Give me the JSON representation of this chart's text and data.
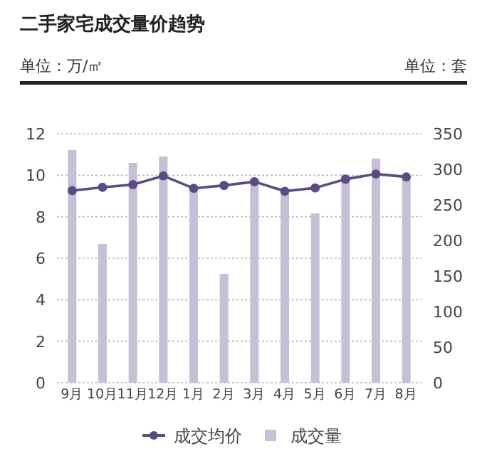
{
  "chart_data": {
    "type": "bar",
    "title": "二手家宅成交量价趋势",
    "ylabel": "单位：万/㎡",
    "y2label": "单位：套",
    "categories": [
      "9月",
      "10月",
      "11月",
      "12月",
      "1月",
      "2月",
      "3月",
      "4月",
      "5月",
      "6月",
      "7月",
      "8月"
    ],
    "series": [
      {
        "name": "成交均价",
        "type": "line",
        "color": "#5b4a86",
        "marker": "circle",
        "values": [
          9.26,
          9.42,
          9.55,
          9.97,
          9.37,
          9.51,
          9.69,
          9.23,
          9.39,
          9.81,
          10.06,
          9.92
        ]
      },
      {
        "name": "成交量",
        "axis": "y2",
        "color": "#c5c0d6",
        "values": [
          327,
          195,
          309,
          318,
          275,
          153,
          285,
          271,
          238,
          293,
          315,
          291
        ]
      }
    ],
    "ylim": [
      0,
      12
    ],
    "yticks": [
      0,
      2,
      4,
      6,
      8,
      10,
      12
    ],
    "y2lim": [
      0,
      350
    ],
    "y2ticks": [
      0,
      50,
      100,
      150,
      200,
      250,
      300,
      350
    ],
    "grid": "y",
    "legend": "bottom"
  }
}
